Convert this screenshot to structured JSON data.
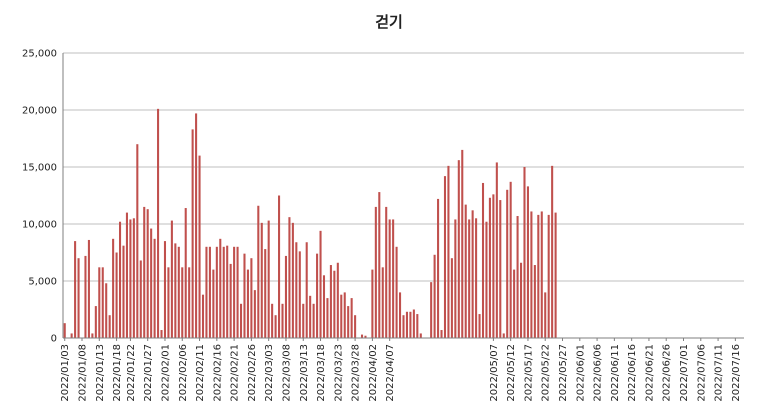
{
  "chart_data": {
    "type": "bar",
    "title": "걷기",
    "xlabel": "",
    "ylabel": "",
    "ylim": [
      0,
      25000
    ],
    "yticks": [
      0,
      5000,
      10000,
      15000,
      20000,
      25000
    ],
    "ytick_labels": [
      "0",
      "5,000",
      "10,000",
      "15,000",
      "20,000",
      "25,000"
    ],
    "grid": true,
    "legend": "none",
    "bar_color": "#c0504d",
    "x_start": "2022-01-03",
    "x_end": "2022-07-18",
    "tick_labels": [
      "2022/01/03",
      "2022/01/08",
      "2022/01/13",
      "2022/01/18",
      "2022/01/22",
      "2022/01/27",
      "2022/02/01",
      "2022/02/06",
      "2022/02/11",
      "2022/02/16",
      "2022/02/21",
      "2022/02/26",
      "2022/03/03",
      "2022/03/08",
      "2022/03/13",
      "2022/03/18",
      "2022/03/23",
      "2022/03/28",
      "2022/04/02",
      "2022/04/07",
      "2022/05/07",
      "2022/05/12",
      "2022/05/17",
      "2022/05/22",
      "2022/05/27",
      "2022/06/01",
      "2022/06/06",
      "2022/06/11",
      "2022/06/16",
      "2022/06/21",
      "2022/06/26",
      "2022/07/01",
      "2022/07/06",
      "2022/07/11",
      "2022/07/16"
    ],
    "values": [
      1300,
      0,
      400,
      8500,
      7000,
      0,
      7200,
      8600,
      400,
      2800,
      6200,
      6200,
      4800,
      2000,
      8700,
      7500,
      10200,
      8100,
      11000,
      10400,
      10500,
      17000,
      6800,
      11500,
      11300,
      9600,
      8700,
      20100,
      700,
      8500,
      6200,
      10300,
      8300,
      8000,
      6200,
      11400,
      6200,
      18300,
      19700,
      16000,
      3800,
      8000,
      8000,
      6000,
      8000,
      8700,
      8000,
      8100,
      6500,
      8000,
      8000,
      3000,
      7400,
      6000,
      7000,
      4200,
      11600,
      10100,
      7800,
      10300,
      3000,
      2000,
      12500,
      3000,
      7200,
      10600,
      10100,
      8400,
      7600,
      3000,
      8400,
      3700,
      3000,
      7400,
      9400,
      5500,
      3500,
      6400,
      5900,
      6600,
      3800,
      4000,
      2800,
      3500,
      2000,
      0,
      300,
      200,
      0,
      6000,
      11500,
      12800,
      6200,
      11500,
      10400,
      10400,
      8000,
      4000,
      2000,
      2300,
      2300,
      2500,
      2100,
      400,
      0,
      0,
      4900,
      7300,
      12200,
      700,
      14200,
      15100,
      7000,
      10400,
      15600,
      16500,
      11700,
      10400,
      11200,
      10500,
      2100,
      13600,
      10200,
      12300,
      12600,
      15400,
      12100,
      400,
      13000,
      13700,
      6000,
      10700,
      6600,
      15000,
      13300,
      11100,
      6400,
      10800,
      11100,
      4000,
      10800,
      15100,
      11000,
      0,
      0,
      0,
      0,
      0,
      0,
      0,
      0,
      0,
      0,
      0,
      0,
      0,
      0,
      0,
      0,
      0,
      0,
      0,
      0,
      0,
      0,
      0,
      0,
      0,
      0,
      0,
      0,
      0,
      0,
      0,
      0,
      0,
      0,
      0,
      0,
      0,
      0,
      0,
      0,
      0,
      0,
      0,
      0,
      0,
      0,
      0,
      0
    ]
  }
}
